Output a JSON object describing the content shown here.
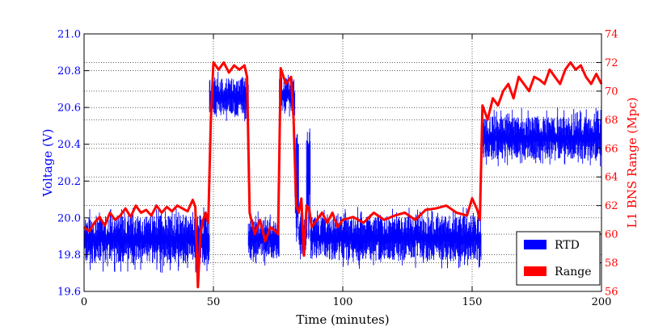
{
  "chart_data": {
    "type": "line",
    "title": "",
    "xlabel": "Time (minutes)",
    "ylabel_left": "Voltage (V)",
    "ylabel_right": "L1 BNS Range (Mpc)",
    "xlim": [
      0,
      200
    ],
    "ylim_left": [
      19.6,
      21.0
    ],
    "ylim_right": [
      56,
      74
    ],
    "x_ticks": [
      0,
      50,
      100,
      150,
      200
    ],
    "x_tick_labels": [
      "0",
      "50",
      "100",
      "150",
      "200"
    ],
    "y_left_ticks": [
      19.6,
      19.8,
      20.0,
      20.2,
      20.4,
      20.6,
      20.8,
      21.0
    ],
    "y_left_tick_labels": [
      "19.6",
      "19.8",
      "20.0",
      "20.2",
      "20.4",
      "20.6",
      "20.8",
      "21.0"
    ],
    "y_right_ticks": [
      56,
      58,
      60,
      62,
      64,
      66,
      68,
      70,
      72,
      74
    ],
    "y_right_tick_labels": [
      "56",
      "58",
      "60",
      "62",
      "64",
      "66",
      "68",
      "70",
      "72",
      "74"
    ],
    "grid": true,
    "legend_position": "bottom-right",
    "colors": {
      "rtd": "#0000ff",
      "range": "#ff0000",
      "left_axis": "#0000ff",
      "right_axis": "#ff0000"
    },
    "series": [
      {
        "name": "RTD",
        "axis": "left",
        "segments": [
          {
            "x_start": 0,
            "x_end": 48.5,
            "center": 19.89,
            "low": 19.7,
            "high": 20.06
          },
          {
            "x_start": 48.5,
            "x_end": 63.5,
            "center": 20.65,
            "low": 20.52,
            "high": 20.8
          },
          {
            "x_start": 63.5,
            "x_end": 75.5,
            "center": 19.88,
            "low": 19.74,
            "high": 20.04
          },
          {
            "x_start": 75.5,
            "x_end": 81.5,
            "center": 20.66,
            "low": 20.55,
            "high": 20.8
          },
          {
            "x_start": 81.5,
            "x_end": 83,
            "center": 20.1,
            "low": 19.76,
            "high": 20.6
          },
          {
            "x_start": 83,
            "x_end": 86,
            "center": 19.88,
            "low": 19.76,
            "high": 20.05
          },
          {
            "x_start": 86,
            "x_end": 87.5,
            "center": 20.2,
            "low": 19.76,
            "high": 20.6
          },
          {
            "x_start": 87.5,
            "x_end": 153.5,
            "center": 19.89,
            "low": 19.72,
            "high": 20.06
          },
          {
            "x_start": 153.5,
            "x_end": 200,
            "center": 20.42,
            "low": 20.28,
            "high": 20.6
          }
        ]
      },
      {
        "name": "Range",
        "axis": "right",
        "x": [
          0,
          2,
          4,
          6,
          8,
          10,
          12,
          14,
          16,
          18,
          20,
          22,
          24,
          26,
          28,
          30,
          32,
          34,
          36,
          38,
          40,
          42,
          43,
          44,
          45,
          46,
          47,
          48,
          49,
          50,
          52,
          54,
          56,
          58,
          60,
          62,
          63,
          64,
          66,
          68,
          70,
          72,
          74,
          75,
          76,
          78,
          80,
          81,
          82,
          83,
          84,
          85,
          86,
          87,
          88,
          90,
          92,
          94,
          96,
          98,
          100,
          104,
          108,
          112,
          116,
          120,
          124,
          128,
          132,
          136,
          140,
          144,
          148,
          150,
          152,
          153,
          154,
          156,
          158,
          160,
          162,
          164,
          166,
          168,
          170,
          172,
          174,
          176,
          178,
          180,
          182,
          184,
          186,
          188,
          190,
          192,
          194,
          196,
          198,
          200
        ],
        "values": [
          60.5,
          60.2,
          60.8,
          61.2,
          60.6,
          61.5,
          61.0,
          61.3,
          61.8,
          61.2,
          62.0,
          61.5,
          61.7,
          61.3,
          62.0,
          61.5,
          61.9,
          61.6,
          62.0,
          61.8,
          61.6,
          62.4,
          61.9,
          56.3,
          60.0,
          61.0,
          61.5,
          60.8,
          68.0,
          72.0,
          71.5,
          72.0,
          71.3,
          71.8,
          71.5,
          71.8,
          71.0,
          61.5,
          60.0,
          61.0,
          59.5,
          60.5,
          60.2,
          60.0,
          71.6,
          70.5,
          71.0,
          68.0,
          62.0,
          61.5,
          62.5,
          58.5,
          62.0,
          61.8,
          60.5,
          61.0,
          61.5,
          60.8,
          61.5,
          60.5,
          61.0,
          61.2,
          60.8,
          61.5,
          61.0,
          61.3,
          61.5,
          61.0,
          61.7,
          61.8,
          62.0,
          61.5,
          61.3,
          62.5,
          61.7,
          61.0,
          69.0,
          68.0,
          69.5,
          69.0,
          70.0,
          70.5,
          69.5,
          71.0,
          70.5,
          70.0,
          71.0,
          70.8,
          70.5,
          71.5,
          71.0,
          70.5,
          71.5,
          72.0,
          71.5,
          71.8,
          71.0,
          70.5,
          71.2,
          70.5
        ]
      }
    ]
  }
}
